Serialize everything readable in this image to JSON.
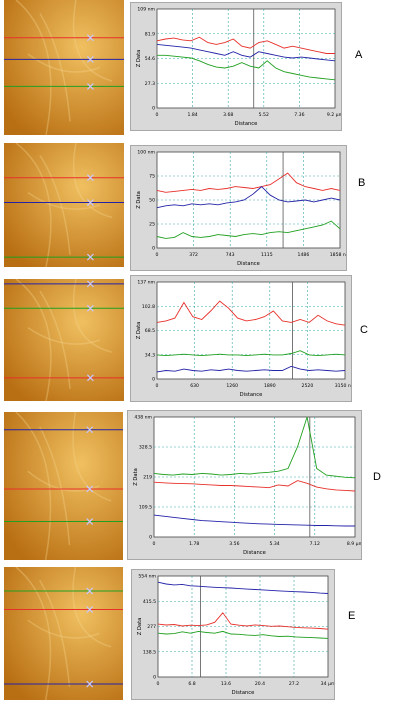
{
  "colors": {
    "red": "#e8302a",
    "blue": "#2323a8",
    "green": "#20a020",
    "image_base": "#b86e12",
    "image_light": "#f0c060",
    "plot_bg": "#ffffff",
    "grid": "#3aa7a7"
  },
  "panels": [
    {
      "letter": "A",
      "chart_data": {
        "type": "line",
        "unit": "nm",
        "ylabel": "Z Data",
        "xlabel": "Distance",
        "y_ticks": [
          "0",
          "27.3",
          "54.6",
          "81.9",
          "109 nm"
        ],
        "x_ticks": [
          "0",
          "1.84",
          "3.68",
          "5.52",
          "7.36",
          "9.2 µm"
        ],
        "ylim": [
          0,
          109
        ],
        "xlim": [
          0,
          9.2
        ],
        "cursor_x": 5.0,
        "series": [
          {
            "color": "red",
            "values": [
              74,
              76,
              77,
              75,
              74,
              78,
              72,
              70,
              72,
              76,
              68,
              66,
              72,
              74,
              70,
              66,
              68,
              66,
              64,
              62,
              60,
              60
            ]
          },
          {
            "color": "blue",
            "values": [
              70,
              69,
              68,
              67,
              66,
              64,
              62,
              60,
              58,
              62,
              58,
              56,
              62,
              60,
              58,
              56,
              55,
              56,
              55,
              54,
              53,
              52
            ]
          },
          {
            "color": "green",
            "values": [
              58,
              58,
              57,
              56,
              55,
              52,
              48,
              45,
              44,
              46,
              50,
              46,
              44,
              52,
              44,
              40,
              38,
              36,
              34,
              33,
              32,
              31
            ]
          }
        ]
      },
      "image_lines": [
        {
          "color": "red",
          "y": 0.28
        },
        {
          "color": "blue",
          "y": 0.44
        },
        {
          "color": "green",
          "y": 0.64
        }
      ]
    },
    {
      "letter": "B",
      "chart_data": {
        "type": "line",
        "unit": "nm",
        "ylabel": "Z Data",
        "xlabel": "Distance",
        "y_ticks": [
          "0",
          "25",
          "50",
          "75",
          "100 nm"
        ],
        "x_ticks": [
          "0",
          "372",
          "743",
          "1115",
          "1486",
          "1858 nm"
        ],
        "ylim": [
          0,
          100
        ],
        "xlim": [
          0,
          1858
        ],
        "cursor_x": 1280,
        "series": [
          {
            "color": "red",
            "values": [
              60,
              58,
              59,
              60,
              61,
              60,
              62,
              61,
              62,
              64,
              63,
              62,
              64,
              66,
              72,
              78,
              68,
              64,
              62,
              60,
              62,
              60
            ]
          },
          {
            "color": "blue",
            "values": [
              42,
              44,
              45,
              44,
              46,
              45,
              46,
              45,
              47,
              48,
              50,
              56,
              64,
              55,
              50,
              48,
              49,
              50,
              48,
              50,
              52,
              50
            ]
          },
          {
            "color": "green",
            "values": [
              12,
              10,
              11,
              16,
              12,
              11,
              12,
              14,
              13,
              12,
              14,
              15,
              14,
              16,
              17,
              16,
              18,
              20,
              22,
              24,
              28,
              20
            ]
          }
        ]
      },
      "image_lines": [
        {
          "color": "red",
          "y": 0.28
        },
        {
          "color": "blue",
          "y": 0.48
        },
        {
          "color": "green",
          "y": 0.92
        }
      ]
    },
    {
      "letter": "C",
      "chart_data": {
        "type": "line",
        "unit": "nm",
        "ylabel": "Z Data",
        "xlabel": "Distance",
        "y_ticks": [
          "0",
          "34.3",
          "68.5",
          "102.8",
          "137 nm"
        ],
        "x_ticks": [
          "0",
          "630",
          "1260",
          "1890",
          "2520",
          "3150 nm"
        ],
        "ylim": [
          0,
          137
        ],
        "xlim": [
          0,
          3150
        ],
        "cursor_x": 2270,
        "series": [
          {
            "color": "red",
            "values": [
              80,
              82,
              86,
              108,
              88,
              84,
              96,
              110,
              100,
              86,
              82,
              84,
              88,
              96,
              82,
              80,
              84,
              80,
              90,
              82,
              78,
              76
            ]
          },
          {
            "color": "green",
            "values": [
              34,
              33,
              34,
              35,
              34,
              33,
              34,
              35,
              34,
              34,
              33,
              34,
              35,
              34,
              34,
              36,
              40,
              34,
              33,
              34,
              35,
              34
            ]
          },
          {
            "color": "blue",
            "values": [
              10,
              12,
              11,
              14,
              12,
              11,
              13,
              12,
              14,
              12,
              11,
              12,
              13,
              12,
              12,
              18,
              14,
              12,
              13,
              12,
              11,
              12
            ]
          }
        ]
      },
      "image_lines": [
        {
          "color": "blue",
          "y": 0.04
        },
        {
          "color": "green",
          "y": 0.24
        },
        {
          "color": "red",
          "y": 0.81
        }
      ]
    },
    {
      "letter": "D",
      "chart_data": {
        "type": "line",
        "unit": "nm",
        "ylabel": "Z Data",
        "xlabel": "Distance",
        "y_ticks": [
          "0",
          "109.5",
          "219",
          "328.5",
          "438 nm"
        ],
        "x_ticks": [
          "0",
          "1.78",
          "3.56",
          "5.34",
          "7.12",
          "8.9 µm"
        ],
        "ylim": [
          0,
          438
        ],
        "xlim": [
          0,
          8.9
        ],
        "cursor_x": 6.9,
        "series": [
          {
            "color": "green",
            "values": [
              232,
              228,
              226,
              230,
              228,
              232,
              230,
              226,
              228,
              232,
              230,
              234,
              236,
              240,
              250,
              330,
              438,
              250,
              226,
              222,
              218,
              216
            ]
          },
          {
            "color": "red",
            "values": [
              200,
              198,
              196,
              195,
              194,
              192,
              190,
              188,
              188,
              186,
              184,
              182,
              180,
              190,
              186,
              206,
              196,
              182,
              176,
              172,
              170,
              168
            ]
          },
          {
            "color": "blue",
            "values": [
              80,
              76,
              72,
              68,
              64,
              60,
              58,
              56,
              54,
              52,
              50,
              48,
              47,
              46,
              45,
              44,
              43,
              42,
              42,
              41,
              40,
              40
            ]
          }
        ]
      },
      "image_lines": [
        {
          "color": "blue",
          "y": 0.12
        },
        {
          "color": "red",
          "y": 0.52
        },
        {
          "color": "green",
          "y": 0.74
        }
      ]
    },
    {
      "letter": "E",
      "chart_data": {
        "type": "line",
        "unit": "nm",
        "ylabel": "Z Data",
        "xlabel": "Distance",
        "y_ticks": [
          "0",
          "138.5",
          "277",
          "415.5",
          "554 nm"
        ],
        "x_ticks": [
          "0",
          "6.8",
          "13.6",
          "20.4",
          "27.2",
          "34 µm"
        ],
        "ylim": [
          0,
          554
        ],
        "xlim": [
          0,
          34
        ],
        "cursor_x": 8.5,
        "series": [
          {
            "color": "blue",
            "values": [
              520,
              510,
              505,
              508,
              500,
              498,
              495,
              492,
              490,
              488,
              485,
              482,
              480,
              478,
              475,
              472,
              470,
              468,
              466,
              464,
              460,
              458
            ]
          },
          {
            "color": "red",
            "values": [
              290,
              285,
              288,
              280,
              284,
              282,
              286,
              300,
              352,
              290,
              284,
              280,
              286,
              282,
              278,
              280,
              276,
              272,
              270,
              268,
              266,
              262
            ]
          },
          {
            "color": "green",
            "values": [
              240,
              236,
              238,
              248,
              240,
              250,
              244,
              240,
              250,
              236,
              234,
              230,
              228,
              232,
              226,
              222,
              224,
              220,
              218,
              216,
              214,
              212
            ]
          }
        ]
      },
      "image_lines": [
        {
          "color": "green",
          "y": 0.18
        },
        {
          "color": "red",
          "y": 0.32
        },
        {
          "color": "blue",
          "y": 0.88
        }
      ]
    }
  ]
}
